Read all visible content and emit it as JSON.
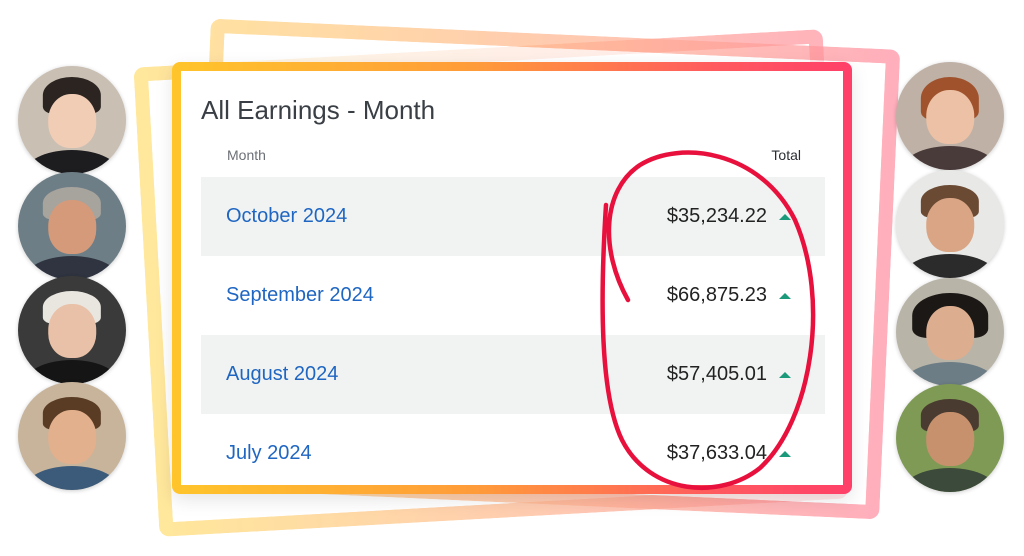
{
  "card": {
    "title": "All Earnings - Month",
    "columns": {
      "month": "Month",
      "total": "Total"
    },
    "rows": [
      {
        "month": "October 2024",
        "total": "$35,234.22",
        "trend": "up"
      },
      {
        "month": "September 2024",
        "total": "$66,875.23",
        "trend": "up"
      },
      {
        "month": "August 2024",
        "total": "$57,405.01",
        "trend": "up"
      },
      {
        "month": "July 2024",
        "total": "$37,633.04",
        "trend": "up"
      }
    ]
  },
  "colors": {
    "link": "#1f66c2",
    "trend_up": "#1a9a7a",
    "annotation": "#e8103c",
    "frame_gradient": [
      "#ffc52b",
      "#ff9b3a",
      "#ff5a5f",
      "#ff3f68"
    ]
  },
  "annotation": {
    "shape": "hand-drawn-circle-around-totals"
  },
  "avatars": {
    "left": [
      "woman-dark-hair",
      "older-man-smiling",
      "older-woman-white-hair",
      "young-man-smiling"
    ],
    "right": [
      "woman-red-hair",
      "man-bearded",
      "woman-curly-hair",
      "man-bearded-gray"
    ]
  }
}
